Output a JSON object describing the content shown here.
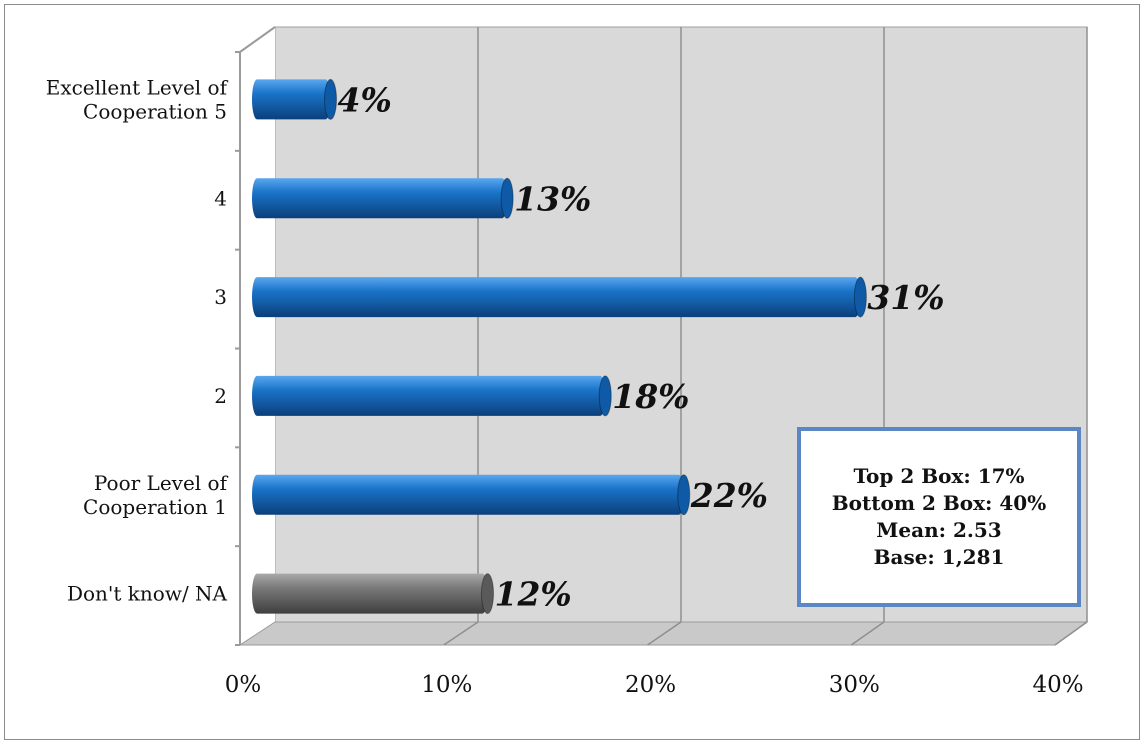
{
  "chart_data": {
    "type": "bar",
    "orientation": "horizontal",
    "categories": [
      "Excellent Level of Cooperation 5",
      "4",
      "3",
      "2",
      "Poor Level of Cooperation 1",
      "Don't know/ NA"
    ],
    "category_lines": [
      [
        "Excellent Level of",
        "Cooperation 5"
      ],
      [
        "4"
      ],
      [
        "3"
      ],
      [
        "2"
      ],
      [
        "Poor Level of",
        "Cooperation 1"
      ],
      [
        "Don't know/ NA"
      ]
    ],
    "values": [
      4,
      13,
      31,
      18,
      22,
      12
    ],
    "data_labels": [
      "4%",
      "13%",
      "31%",
      "18%",
      "22%",
      "12%"
    ],
    "bar_colors": [
      "#1a74c9",
      "#1a74c9",
      "#1a74c9",
      "#1a74c9",
      "#1a74c9",
      "#7a7a7a"
    ],
    "xlim": [
      0,
      40
    ],
    "x_ticks": [
      0,
      10,
      20,
      30,
      40
    ],
    "x_tick_labels": [
      "0%",
      "10%",
      "20%",
      "30%",
      "40%"
    ],
    "grid": true,
    "title": "",
    "xlabel": "",
    "ylabel": ""
  },
  "stats_box": {
    "top2": "Top 2 Box: 17%",
    "bottom2": "Bottom 2 Box: 40%",
    "mean": "Mean: 2.53",
    "base": "Base: 1,281"
  },
  "colors": {
    "plot_wall": "#d9d9d9",
    "floor": "#c9c9c9",
    "gridline": "#8f8f8f",
    "stats_border": "#5b87c5"
  }
}
